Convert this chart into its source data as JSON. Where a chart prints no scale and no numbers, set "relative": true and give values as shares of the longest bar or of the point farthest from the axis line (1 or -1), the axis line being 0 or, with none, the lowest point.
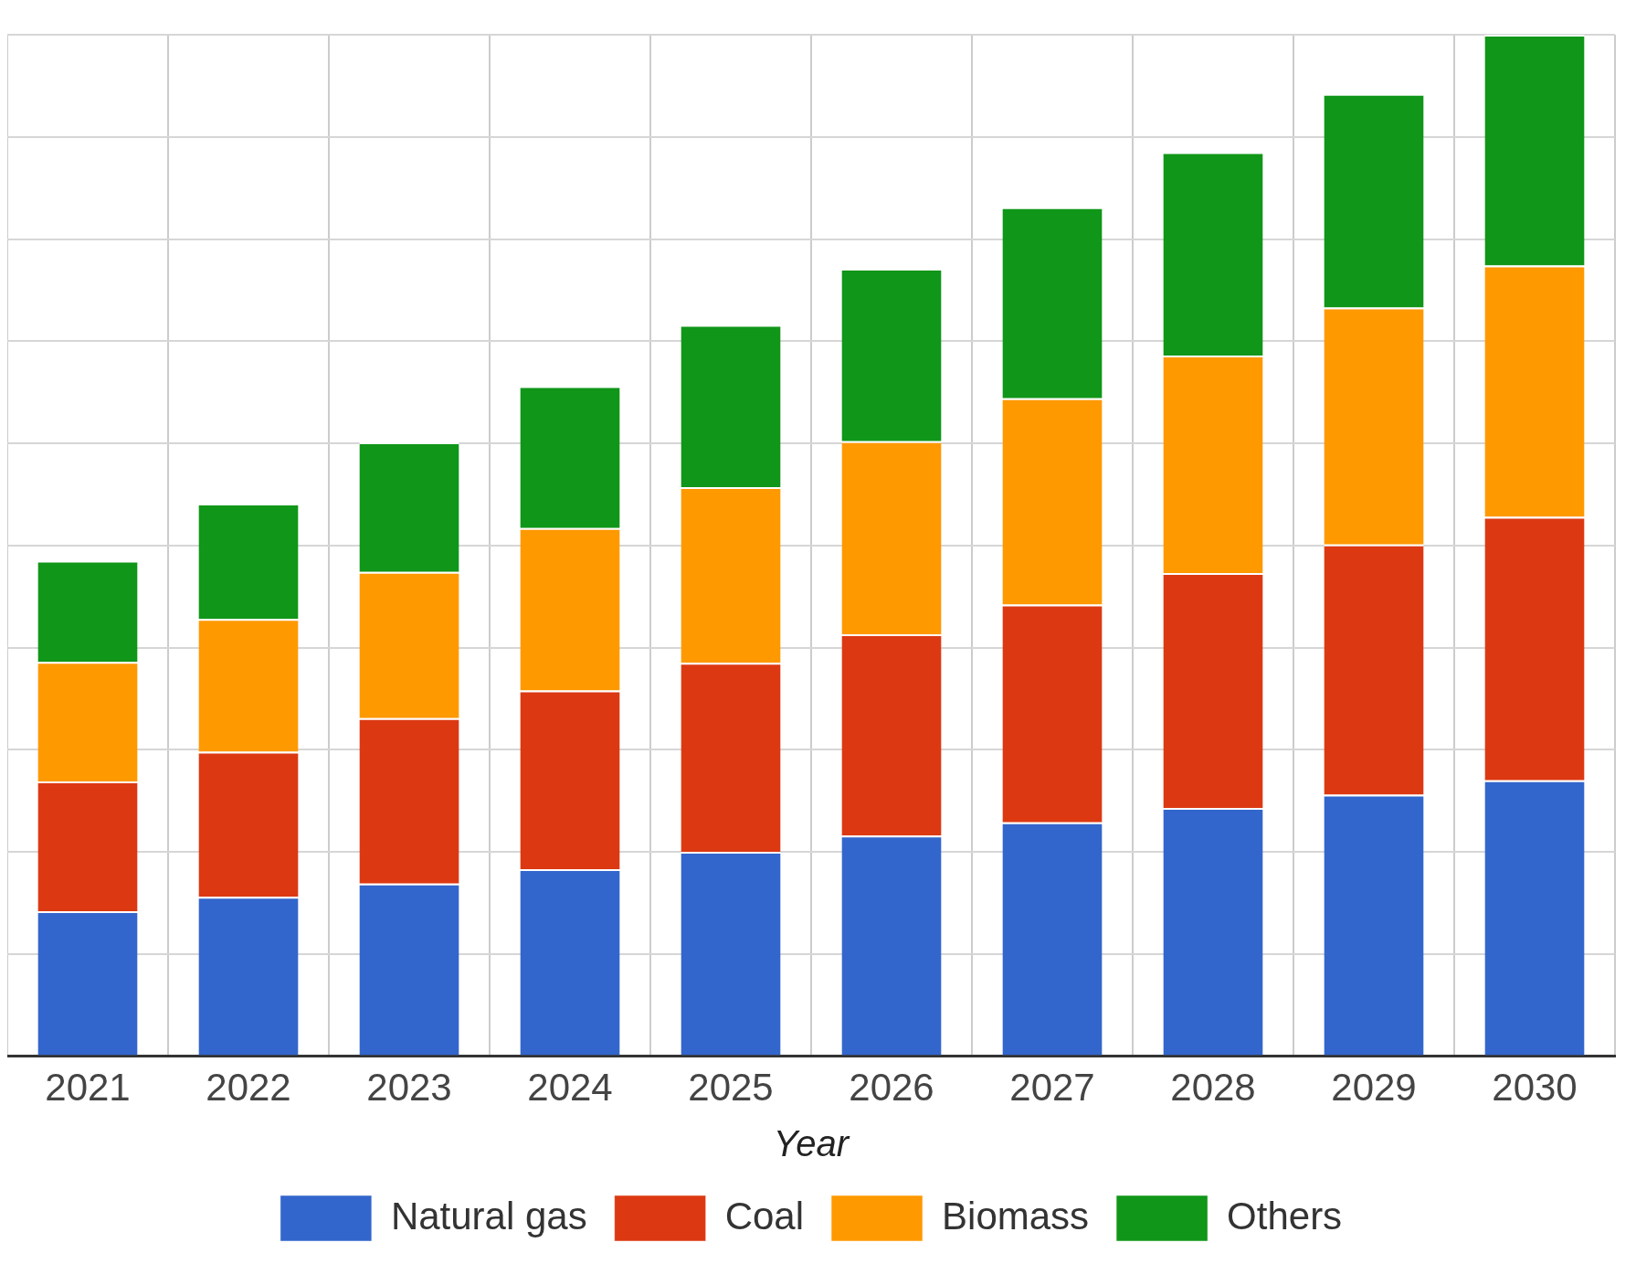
{
  "chart_data": {
    "type": "bar",
    "xlabel": "Year",
    "stacked": true,
    "relative": true,
    "grid": true,
    "legend": "bottom",
    "categories": [
      "2021",
      "2022",
      "2023",
      "2024",
      "2025",
      "2026",
      "2027",
      "2028",
      "2029",
      "2030"
    ],
    "series": [
      {
        "name": "Natural gas",
        "color": "#3366cc",
        "values": [
          0.142,
          0.156,
          0.169,
          0.183,
          0.2,
          0.216,
          0.229,
          0.243,
          0.256,
          0.27
        ]
      },
      {
        "name": "Coal",
        "color": "#dc3912",
        "values": [
          0.127,
          0.142,
          0.162,
          0.175,
          0.185,
          0.197,
          0.213,
          0.23,
          0.245,
          0.258
        ]
      },
      {
        "name": "Biomass",
        "color": "#ff9900",
        "values": [
          0.117,
          0.13,
          0.143,
          0.159,
          0.172,
          0.189,
          0.202,
          0.213,
          0.232,
          0.246
        ]
      },
      {
        "name": "Others",
        "color": "#109618",
        "values": [
          0.099,
          0.113,
          0.127,
          0.139,
          0.159,
          0.169,
          0.187,
          0.199,
          0.209,
          0.226
        ]
      }
    ]
  }
}
